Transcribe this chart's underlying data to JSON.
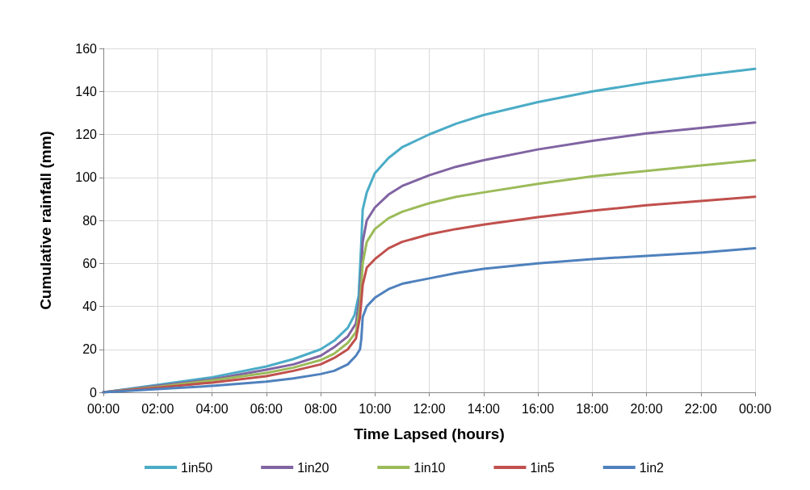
{
  "chart_data": {
    "type": "line",
    "xlabel": "Time Lapsed (hours)",
    "ylabel": "Cumulative rainfall (mm)",
    "xlim": [
      0,
      24
    ],
    "xticks": [
      {
        "value": 0,
        "label": "00:00"
      },
      {
        "value": 2,
        "label": "02:00"
      },
      {
        "value": 4,
        "label": "04:00"
      },
      {
        "value": 6,
        "label": "06:00"
      },
      {
        "value": 8,
        "label": "08:00"
      },
      {
        "value": 10,
        "label": "10:00"
      },
      {
        "value": 12,
        "label": "12:00"
      },
      {
        "value": 14,
        "label": "14:00"
      },
      {
        "value": 16,
        "label": "16:00"
      },
      {
        "value": 18,
        "label": "18:00"
      },
      {
        "value": 20,
        "label": "20:00"
      },
      {
        "value": 22,
        "label": "22:00"
      },
      {
        "value": 24,
        "label": "00:00"
      }
    ],
    "ylim": [
      0,
      160
    ],
    "yticks": [
      0,
      20,
      40,
      60,
      80,
      100,
      120,
      140,
      160
    ],
    "grid": true,
    "legend": "bottom",
    "marker": "none",
    "line_style": "solid",
    "series": [
      {
        "name": "1in50",
        "color": "#4bacc6",
        "x": [
          0,
          2,
          4,
          6,
          7,
          8,
          8.5,
          9,
          9.25,
          9.4,
          9.5,
          9.55,
          9.7,
          10,
          10.5,
          11,
          12,
          13,
          14,
          16,
          18,
          20,
          22,
          24
        ],
        "values": [
          0,
          3.5,
          7,
          12,
          15.5,
          20,
          24,
          30,
          36,
          45,
          70,
          85,
          93,
          102,
          109,
          114,
          120,
          125,
          129,
          135,
          140,
          144,
          147.5,
          150.5
        ]
      },
      {
        "name": "1in20",
        "color": "#8064a2",
        "x": [
          0,
          2,
          4,
          6,
          7,
          8,
          8.5,
          9,
          9.3,
          9.45,
          9.55,
          9.7,
          10,
          10.5,
          11,
          12,
          13,
          14,
          16,
          18,
          20,
          22,
          24
        ],
        "values": [
          0,
          3,
          6,
          10.5,
          13,
          17,
          21,
          26,
          32,
          45,
          70,
          80,
          86,
          92,
          96,
          101,
          105,
          108,
          113,
          117,
          120.5,
          123,
          125.5
        ]
      },
      {
        "name": "1in10",
        "color": "#9bbb59",
        "x": [
          0,
          2,
          4,
          6,
          7,
          8,
          8.5,
          9,
          9.3,
          9.45,
          9.55,
          9.7,
          10,
          10.5,
          11,
          12,
          13,
          14,
          16,
          18,
          20,
          22,
          24
        ],
        "values": [
          0,
          2.5,
          5.5,
          9,
          11.5,
          15,
          18,
          23,
          28,
          40,
          60,
          70,
          76,
          81,
          84,
          88,
          91,
          93,
          97,
          100.5,
          103,
          105.5,
          108
        ]
      },
      {
        "name": "1in5",
        "color": "#c0504d",
        "x": [
          0,
          2,
          4,
          6,
          7,
          8,
          8.5,
          9,
          9.3,
          9.45,
          9.55,
          9.7,
          10,
          10.5,
          11,
          12,
          13,
          14,
          16,
          18,
          20,
          22,
          24
        ],
        "values": [
          0,
          2.2,
          4.5,
          7.5,
          10,
          13,
          16,
          20,
          25,
          35,
          50,
          58,
          62,
          67,
          70,
          73.5,
          76,
          78,
          81.5,
          84.5,
          87,
          89,
          91
        ]
      },
      {
        "name": "1in2",
        "color": "#4f81bd",
        "x": [
          0,
          2,
          4,
          6,
          7,
          8,
          8.5,
          9,
          9.3,
          9.45,
          9.5,
          9.55,
          9.7,
          10,
          10.5,
          11,
          12,
          13,
          14,
          16,
          18,
          20,
          22,
          24
        ],
        "values": [
          0,
          1.5,
          3,
          5,
          6.5,
          8.5,
          10,
          13,
          17,
          20,
          25,
          35,
          40,
          44,
          48,
          50.5,
          53,
          55.5,
          57.5,
          60,
          62,
          63.5,
          65,
          67
        ]
      }
    ]
  }
}
